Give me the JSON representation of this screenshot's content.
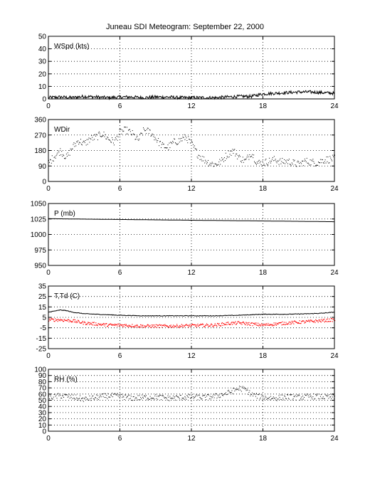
{
  "title": "Juneau SDI Meteogram: September 22, 2000",
  "colors": {
    "axes": "#000000",
    "grid": "#000000",
    "primary": "#000000",
    "dewpoint": "#ff0000"
  },
  "chart_data": [
    {
      "type": "line",
      "label": "WSpd (kts)",
      "xlim": [
        0,
        24
      ],
      "xticks": [
        0,
        6,
        12,
        18,
        24
      ],
      "ylim": [
        0,
        50
      ],
      "yticks": [
        0,
        10,
        20,
        30,
        40,
        50
      ],
      "grid": true,
      "series": [
        {
          "color": "#000000",
          "x": [
            0,
            1,
            2,
            3,
            4,
            5,
            6,
            7,
            8,
            9,
            10,
            11,
            12,
            13,
            14,
            15,
            16,
            17,
            17.5,
            18,
            19,
            20,
            21,
            22,
            23,
            24
          ],
          "y": [
            1,
            1.5,
            1,
            2,
            1.5,
            1,
            1.5,
            1.5,
            1,
            1.5,
            1.5,
            1,
            1,
            1,
            1,
            1.5,
            2,
            2,
            3,
            4,
            4.5,
            5,
            5.5,
            5.5,
            5,
            4.5
          ]
        }
      ]
    },
    {
      "type": "scatter",
      "label": "WDir",
      "xlim": [
        0,
        24
      ],
      "xticks": [
        0,
        6,
        12,
        18,
        24
      ],
      "ylim": [
        0,
        360
      ],
      "yticks": [
        0,
        90,
        180,
        270,
        360
      ],
      "grid": true,
      "series": [
        {
          "color": "#000000",
          "x": [
            0,
            0.5,
            1,
            1.5,
            2,
            2.5,
            3,
            3.5,
            4,
            4.5,
            5,
            5.5,
            6,
            6.5,
            7,
            7.5,
            8,
            8.5,
            9,
            9.5,
            10,
            10.5,
            11,
            11.5,
            12,
            12.5,
            13,
            13.5,
            14,
            14.5,
            15,
            15.5,
            16,
            16.5,
            17,
            17.5,
            18,
            18.5,
            19,
            19.5,
            20,
            20.5,
            21,
            21.5,
            22,
            22.5,
            23,
            23.5,
            24
          ],
          "y": [
            110,
            150,
            180,
            140,
            200,
            240,
            220,
            250,
            260,
            280,
            250,
            230,
            290,
            300,
            280,
            240,
            300,
            290,
            250,
            210,
            200,
            230,
            240,
            260,
            220,
            160,
            130,
            110,
            100,
            120,
            160,
            180,
            140,
            120,
            170,
            110,
            110,
            120,
            130,
            115,
            120,
            110,
            100,
            120,
            115,
            110,
            125,
            130,
            135
          ]
        }
      ]
    },
    {
      "type": "line",
      "label": "P (mb)",
      "xlim": [
        0,
        24
      ],
      "xticks": [
        0,
        6,
        12,
        18,
        24
      ],
      "ylim": [
        950,
        1050
      ],
      "yticks": [
        950,
        975,
        1000,
        1025,
        1050
      ],
      "grid": true,
      "series": [
        {
          "color": "#000000",
          "x": [
            0,
            3,
            6,
            9,
            12,
            15,
            18,
            21,
            24
          ],
          "y": [
            1025.5,
            1024.8,
            1024.2,
            1023.6,
            1023,
            1022.4,
            1021.8,
            1021.2,
            1020.6
          ]
        }
      ]
    },
    {
      "type": "line",
      "label": "T,Td (C)",
      "xlim": [
        0,
        24
      ],
      "xticks": [
        0,
        6,
        12,
        18,
        24
      ],
      "ylim": [
        -25,
        35
      ],
      "yticks": [
        -25,
        -15,
        -5,
        5,
        15,
        25,
        35
      ],
      "grid": true,
      "series": [
        {
          "name": "T",
          "color": "#000000",
          "x": [
            0,
            0.5,
            1,
            1.5,
            2,
            3,
            4,
            5,
            6,
            8,
            10,
            12,
            14,
            16,
            17,
            18,
            20,
            22,
            23,
            24
          ],
          "y": [
            10,
            11,
            12,
            11.5,
            10,
            8.5,
            8,
            7.5,
            7,
            6.5,
            6.5,
            6.5,
            6.5,
            7,
            7.5,
            8,
            8,
            8.5,
            9,
            10
          ]
        },
        {
          "name": "Td",
          "color": "#ff0000",
          "x": [
            0,
            1,
            2,
            3,
            4,
            5,
            6,
            8,
            10,
            12,
            14,
            15,
            16,
            17,
            18,
            20,
            22,
            24
          ],
          "y": [
            3,
            3,
            2,
            0,
            -1,
            -2,
            -2,
            -3,
            -3,
            -2.5,
            -2,
            -0.5,
            0,
            -1,
            -2,
            0,
            1.5,
            3
          ]
        }
      ]
    },
    {
      "type": "scatter",
      "label": "RH (%)",
      "xlim": [
        0,
        24
      ],
      "xticks": [
        0,
        6,
        12,
        18,
        24
      ],
      "ylim": [
        0,
        100
      ],
      "yticks": [
        0,
        10,
        20,
        30,
        40,
        50,
        60,
        70,
        80,
        90,
        100
      ],
      "grid": true,
      "series": [
        {
          "color": "#000000",
          "x": [
            0,
            1,
            2,
            3,
            4,
            5,
            6,
            7,
            8,
            9,
            10,
            11,
            12,
            13,
            14,
            15,
            16,
            16.5,
            17,
            18,
            19,
            20,
            21,
            22,
            23,
            24
          ],
          "y": [
            55,
            58,
            56,
            52,
            55,
            58,
            57,
            54,
            55,
            56,
            54,
            55,
            56,
            55,
            57,
            62,
            70,
            68,
            60,
            55,
            54,
            56,
            55,
            57,
            56,
            55
          ]
        }
      ]
    }
  ]
}
